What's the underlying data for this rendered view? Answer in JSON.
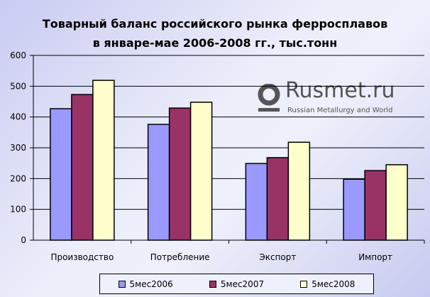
{
  "chart_data": {
    "type": "bar",
    "title": [
      "Товарный баланс российского рынка ферросплавов",
      "в январе-мае 2006-2008 гг., тыс.тонн"
    ],
    "categories": [
      "Производство",
      "Потребление",
      "Экспорт",
      "Импорт"
    ],
    "series": [
      {
        "name": "5мес2006",
        "color": "#9999ff",
        "values": [
          427,
          376,
          249,
          198
        ]
      },
      {
        "name": "5мес2007",
        "color": "#993366",
        "values": [
          473,
          429,
          268,
          226
        ]
      },
      {
        "name": "5мес2008",
        "color": "#ffffcc",
        "values": [
          519,
          448,
          318,
          245
        ]
      }
    ],
    "ylim": [
      0,
      600
    ],
    "yticks": [
      0,
      100,
      200,
      300,
      400,
      500,
      600
    ],
    "grid": true,
    "legend_position": "bottom",
    "xlabel": "",
    "ylabel": ""
  },
  "watermark": {
    "name": "Rusmet.ru",
    "tagline": "Russian Metallurgy and World"
  }
}
